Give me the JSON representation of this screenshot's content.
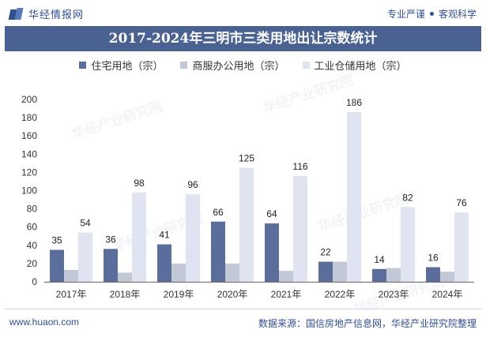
{
  "header": {
    "brand_name": "华经情报网",
    "tagline_left": "专业严谨",
    "tagline_right": "客观科学"
  },
  "colors": {
    "title_bar": "#4a6292",
    "residential": "#5b6d9a",
    "commercial": "#c3c8d6",
    "industrial": "#dfe4f0"
  },
  "chart_data": {
    "type": "bar",
    "title": "2017-2024年三明市三类用地出让宗数统计",
    "categories": [
      "2017年",
      "2018年",
      "2019年",
      "2020年",
      "2021年",
      "2022年",
      "2023年",
      "2024年"
    ],
    "series": [
      {
        "name": "住宅用地（宗）",
        "values": [
          35,
          36,
          41,
          66,
          64,
          22,
          14,
          16
        ],
        "color": "#5b6d9a",
        "labeled": true
      },
      {
        "name": "商服办公用地（宗）",
        "values": [
          13,
          10,
          20,
          20,
          12,
          22,
          15,
          11
        ],
        "color": "#c3c8d6",
        "labeled": false
      },
      {
        "name": "工业仓储用地（宗）",
        "values": [
          54,
          98,
          96,
          125,
          116,
          186,
          82,
          76
        ],
        "color": "#dfe4f0",
        "labeled": true
      }
    ],
    "yticks": [
      "0",
      "20",
      "40",
      "60",
      "80",
      "100",
      "120",
      "140",
      "160",
      "180",
      "200"
    ],
    "ylim": [
      0,
      200
    ],
    "legend": "top",
    "grid": false
  },
  "watermark": "华经产业研究院",
  "footer": {
    "website": "www.huaon.com",
    "source": "数据来源：国信房地产信息网，华经产业研究院整理"
  }
}
